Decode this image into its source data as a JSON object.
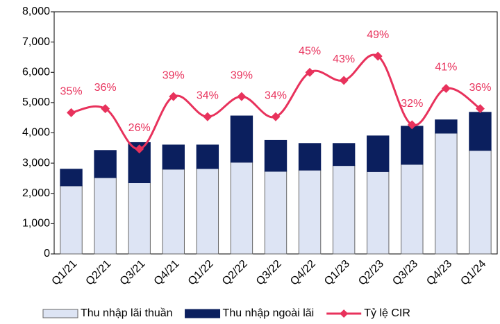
{
  "chart_data": {
    "type": "bar",
    "stacked": true,
    "categories": [
      "Q1/21",
      "Q2/21",
      "Q3/21",
      "Q4/21",
      "Q1/22",
      "Q2/22",
      "Q3/22",
      "Q4/22",
      "Q1/23",
      "Q2/23",
      "Q3/23",
      "Q4/23",
      "Q1/24"
    ],
    "series": [
      {
        "name": "Thu nhập lãi thuần",
        "type": "bar",
        "color": "#dde4f4",
        "values": [
          2250,
          2520,
          2350,
          2800,
          2820,
          3030,
          2730,
          2770,
          2920,
          2720,
          2960,
          3990,
          3420
        ]
      },
      {
        "name": "Thu nhập ngoài lãi",
        "type": "bar",
        "color": "#0b1f5e",
        "values": [
          550,
          900,
          1330,
          800,
          780,
          1530,
          1020,
          880,
          730,
          1180,
          1260,
          440,
          1260
        ]
      },
      {
        "name": "Tỷ lệ CIR",
        "type": "line",
        "axis": "y2",
        "color": "#e8325c",
        "values": [
          35,
          36,
          26,
          39,
          34,
          39,
          34,
          45,
          43,
          49,
          32,
          41,
          36
        ],
        "value_labels": [
          "35%",
          "36%",
          "26%",
          "39%",
          "34%",
          "39%",
          "34%",
          "45%",
          "43%",
          "49%",
          "32%",
          "41%",
          "36%"
        ]
      }
    ],
    "ylim": [
      0,
      8000
    ],
    "yticks": [
      0,
      {
        "value": 1000,
        "label": "1,000"
      },
      {
        "value": 2000,
        "label": "2,000"
      },
      {
        "value": 3000,
        "label": "3,000"
      },
      {
        "value": 4000,
        "label": "4,000"
      },
      {
        "value": 5000,
        "label": "5,000"
      },
      {
        "value": 6000,
        "label": "6,000"
      },
      {
        "value": 7000,
        "label": "7,000"
      },
      {
        "value": 8000,
        "label": "8,000"
      }
    ],
    "y2lim": [
      0,
      60
    ],
    "grid": false,
    "legend": "bottom"
  }
}
